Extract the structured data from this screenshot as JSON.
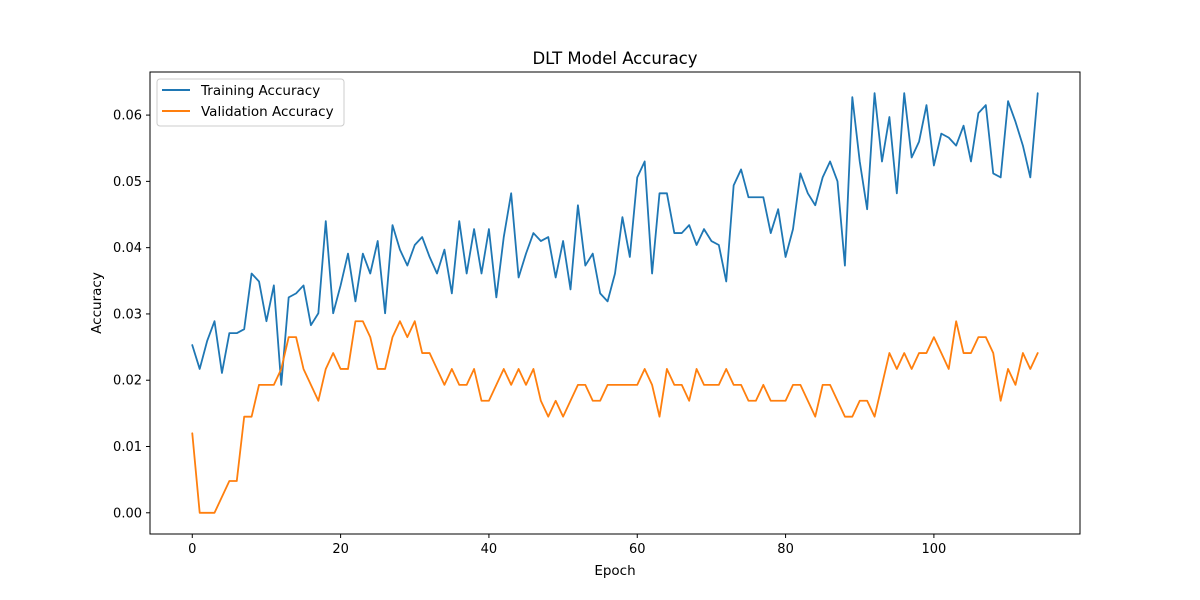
{
  "chart_data": {
    "type": "line",
    "title": "DLT Model Accuracy",
    "xlabel": "Epoch",
    "ylabel": "Accuracy",
    "xlim": [
      -5.7,
      119.7
    ],
    "ylim": [
      -0.0032,
      0.0665
    ],
    "xticks": [
      0,
      20,
      40,
      60,
      80,
      100
    ],
    "yticks": [
      0.0,
      0.01,
      0.02,
      0.03,
      0.04,
      0.05,
      0.06
    ],
    "ytick_labels": [
      "0.00",
      "0.01",
      "0.02",
      "0.03",
      "0.04",
      "0.05",
      "0.06"
    ],
    "legend_position": "top-left",
    "grid": false,
    "series": [
      {
        "name": "Training Accuracy",
        "color": "#1f77b4",
        "values": [
          0.0253,
          0.0217,
          0.0259,
          0.0289,
          0.0211,
          0.0271,
          0.0271,
          0.0277,
          0.0361,
          0.0349,
          0.0289,
          0.0343,
          0.0193,
          0.0325,
          0.0331,
          0.0343,
          0.0283,
          0.0301,
          0.044,
          0.0301,
          0.0343,
          0.0391,
          0.0319,
          0.0391,
          0.0361,
          0.041,
          0.0301,
          0.0434,
          0.0397,
          0.0373,
          0.0404,
          0.0416,
          0.0386,
          0.0361,
          0.0397,
          0.0331,
          0.044,
          0.0361,
          0.0428,
          0.0361,
          0.0428,
          0.0325,
          0.0416,
          0.0482,
          0.0355,
          0.0391,
          0.0422,
          0.041,
          0.0416,
          0.0355,
          0.041,
          0.0337,
          0.0464,
          0.0373,
          0.0391,
          0.0331,
          0.0319,
          0.0361,
          0.0446,
          0.0386,
          0.0506,
          0.053,
          0.0361,
          0.0482,
          0.0482,
          0.0422,
          0.0422,
          0.0434,
          0.0404,
          0.0428,
          0.041,
          0.0404,
          0.0349,
          0.0494,
          0.0518,
          0.0476,
          0.0476,
          0.0476,
          0.0422,
          0.0458,
          0.0386,
          0.0428,
          0.0512,
          0.0482,
          0.0464,
          0.0506,
          0.053,
          0.05,
          0.0373,
          0.0627,
          0.053,
          0.0458,
          0.0633,
          0.053,
          0.0597,
          0.0482,
          0.0633,
          0.0536,
          0.056,
          0.0615,
          0.0524,
          0.0572,
          0.0566,
          0.0554,
          0.0584,
          0.053,
          0.0603,
          0.0615,
          0.0512,
          0.0506,
          0.0621,
          0.059,
          0.0554,
          0.0506,
          0.0633
        ]
      },
      {
        "name": "Validation Accuracy",
        "color": "#ff7f0e",
        "values": [
          0.012,
          0.0,
          0.0,
          0.0,
          0.0024,
          0.0048,
          0.0048,
          0.0145,
          0.0145,
          0.0193,
          0.0193,
          0.0193,
          0.0217,
          0.0265,
          0.0265,
          0.0217,
          0.0193,
          0.0169,
          0.0217,
          0.0241,
          0.0217,
          0.0217,
          0.0289,
          0.0289,
          0.0265,
          0.0217,
          0.0217,
          0.0265,
          0.0289,
          0.0265,
          0.0289,
          0.0241,
          0.0241,
          0.0217,
          0.0193,
          0.0217,
          0.0193,
          0.0193,
          0.0217,
          0.0169,
          0.0169,
          0.0193,
          0.0217,
          0.0193,
          0.0217,
          0.0193,
          0.0217,
          0.0169,
          0.0145,
          0.0169,
          0.0145,
          0.0169,
          0.0193,
          0.0193,
          0.0169,
          0.0169,
          0.0193,
          0.0193,
          0.0193,
          0.0193,
          0.0193,
          0.0217,
          0.0193,
          0.0145,
          0.0217,
          0.0193,
          0.0193,
          0.0169,
          0.0217,
          0.0193,
          0.0193,
          0.0193,
          0.0217,
          0.0193,
          0.0193,
          0.0169,
          0.0169,
          0.0193,
          0.0169,
          0.0169,
          0.0169,
          0.0193,
          0.0193,
          0.0169,
          0.0145,
          0.0193,
          0.0193,
          0.0169,
          0.0145,
          0.0145,
          0.0169,
          0.0169,
          0.0145,
          0.0193,
          0.0241,
          0.0217,
          0.0241,
          0.0217,
          0.0241,
          0.0241,
          0.0265,
          0.0241,
          0.0217,
          0.0289,
          0.0241,
          0.0241,
          0.0265,
          0.0265,
          0.0241,
          0.0169,
          0.0217,
          0.0193,
          0.0241,
          0.0217,
          0.0241
        ]
      }
    ]
  }
}
